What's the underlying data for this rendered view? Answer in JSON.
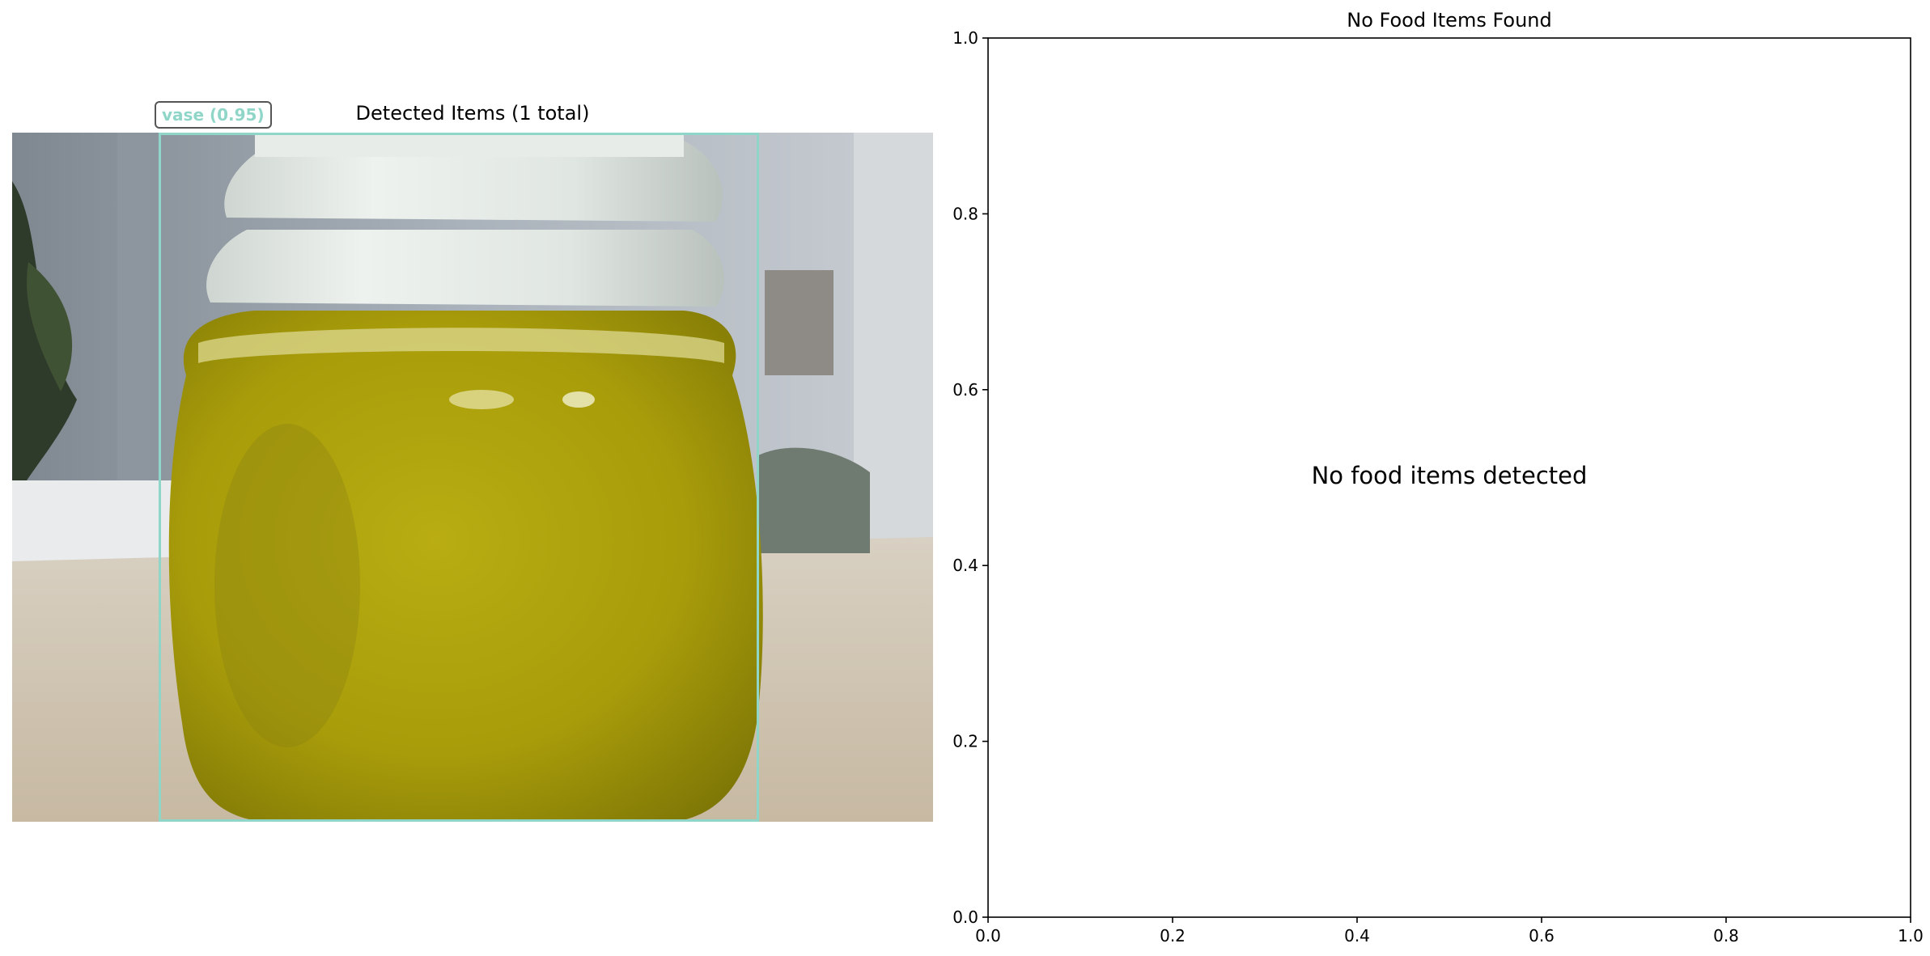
{
  "left_panel": {
    "title": "Detected Items (1 total)",
    "detections": [
      {
        "label": "vase (0.95)",
        "color": "#8fd6c8"
      }
    ]
  },
  "right_panel": {
    "title": "No Food Items Found",
    "message": "No food items detected"
  },
  "chart_data": [
    {
      "type": "image",
      "title": "Detected Items (1 total)",
      "annotations": [
        {
          "class": "vase",
          "score": 0.95,
          "text": "vase (0.95)"
        }
      ]
    },
    {
      "type": "scatter",
      "title": "No Food Items Found",
      "series": [],
      "annotation": "No food items detected",
      "xlim": [
        0.0,
        1.0
      ],
      "ylim": [
        0.0,
        1.0
      ],
      "x_ticks": [
        "0.0",
        "0.2",
        "0.4",
        "0.6",
        "0.8",
        "1.0"
      ],
      "y_ticks": [
        "0.0",
        "0.2",
        "0.4",
        "0.6",
        "0.8",
        "1.0"
      ],
      "grid": false
    }
  ]
}
